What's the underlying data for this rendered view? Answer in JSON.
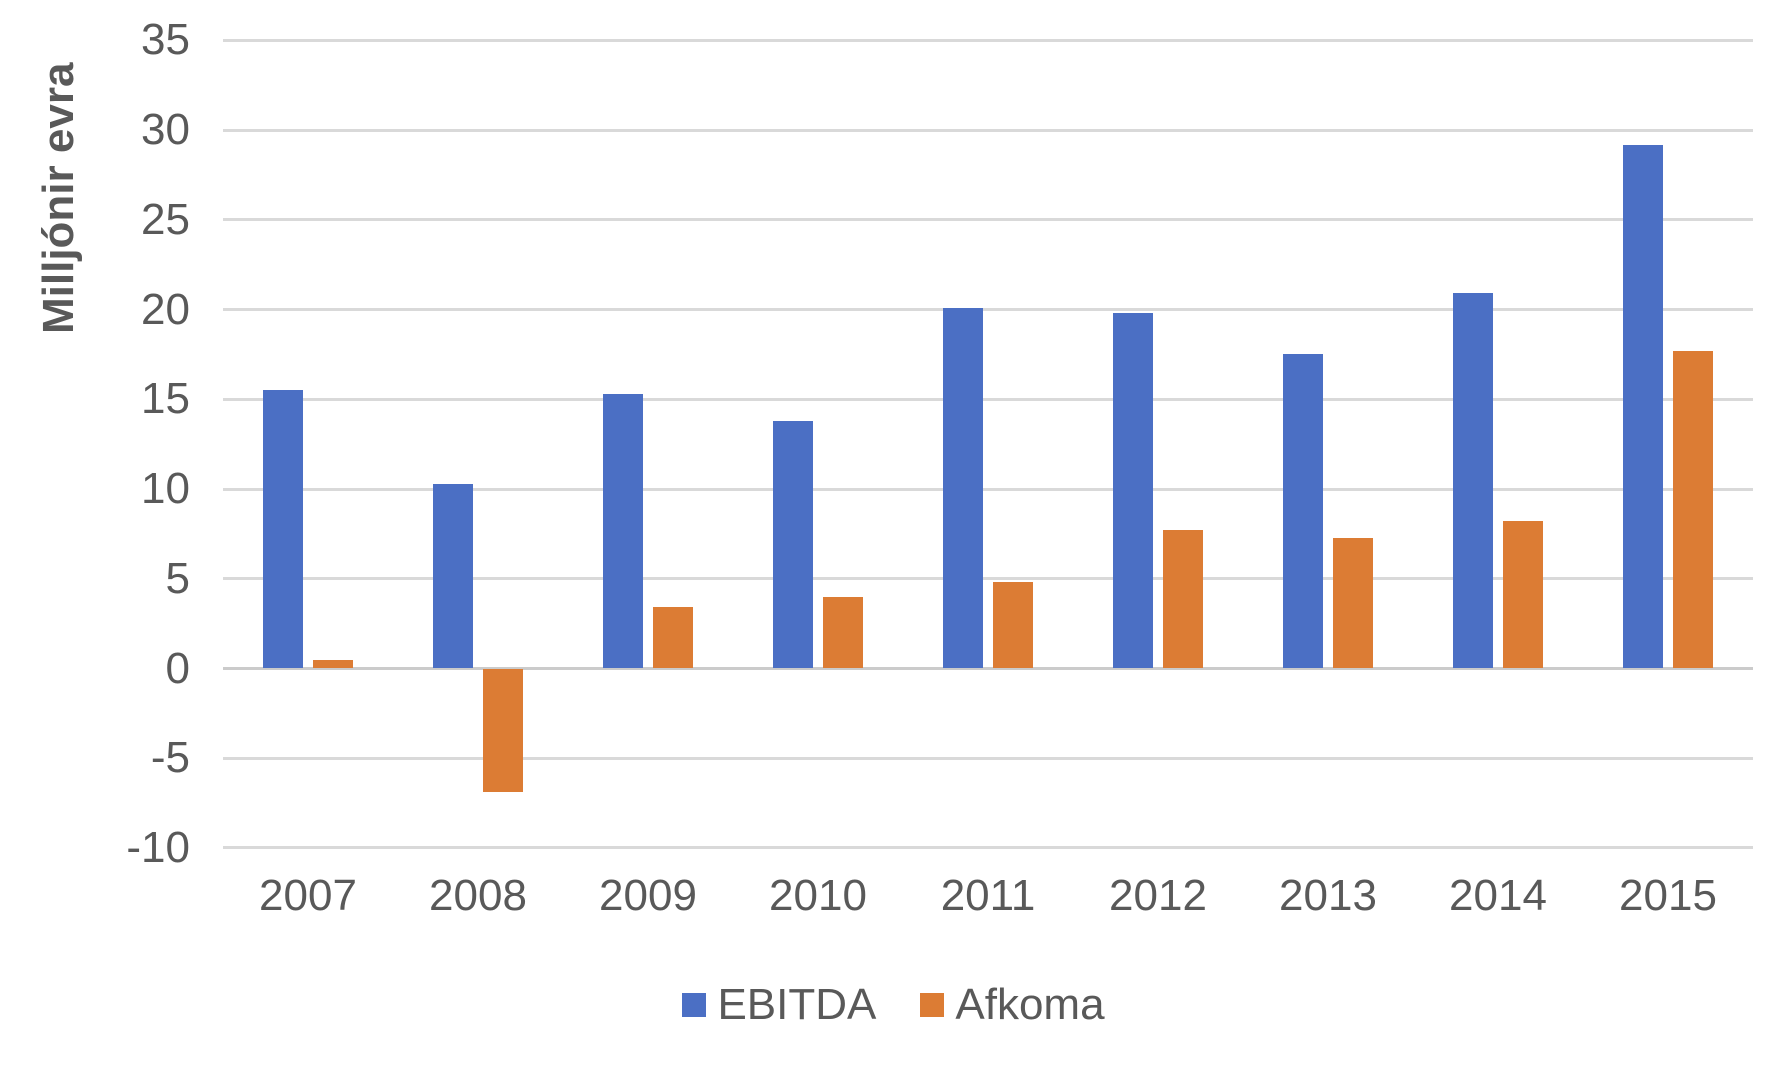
{
  "chart_data": {
    "type": "bar",
    "title": "",
    "ylabel": "Milljónir evra",
    "xlabel": "",
    "ylim": [
      -10,
      35
    ],
    "y_tick_step": 5,
    "y_ticks": [
      "35",
      "30",
      "25",
      "20",
      "15",
      "10",
      "5",
      "0",
      "-5",
      "-10"
    ],
    "grid": true,
    "legend_position": "bottom-center",
    "categories": [
      "2007",
      "2008",
      "2009",
      "2010",
      "2011",
      "2012",
      "2013",
      "2014",
      "2015"
    ],
    "series": [
      {
        "name": "EBITDA",
        "color": "#4B6FC4",
        "values": [
          15.5,
          10.3,
          15.3,
          13.8,
          20.1,
          19.8,
          17.5,
          20.9,
          29.2
        ]
      },
      {
        "name": "Afkoma",
        "color": "#DC7C34",
        "values": [
          0.5,
          -6.9,
          3.4,
          4.0,
          4.8,
          7.7,
          7.3,
          8.2,
          17.7
        ]
      }
    ]
  },
  "colors": {
    "background": "#FFFFFF",
    "gridline": "#D9D9D9",
    "zero_line": "#CBCBCB",
    "text": "#595959"
  }
}
